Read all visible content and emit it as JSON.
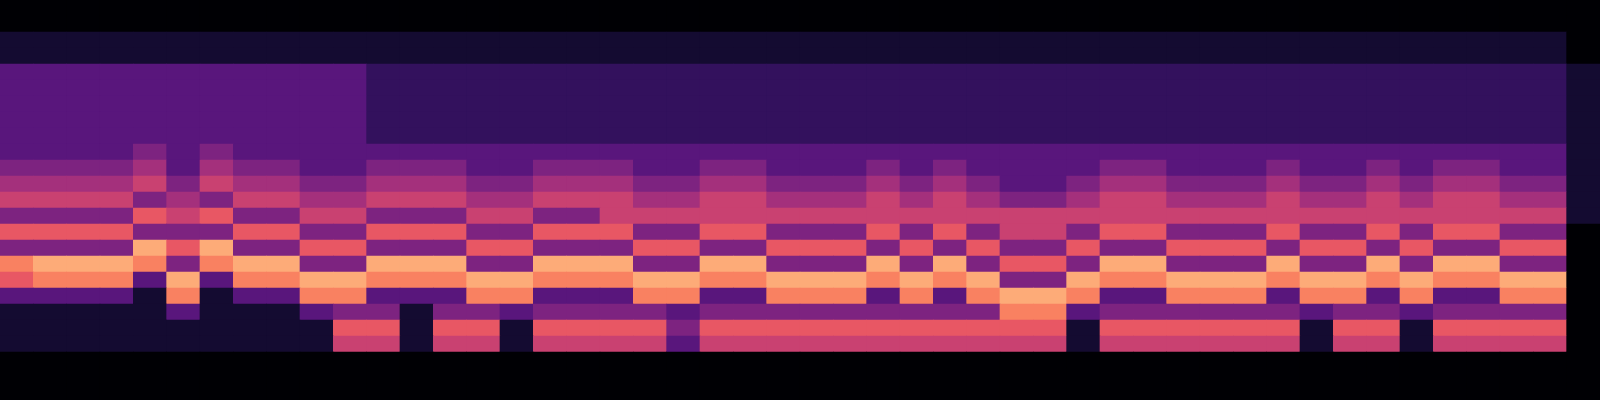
{
  "chart_data": {
    "type": "heatmap",
    "tick_labels": false,
    "cells": [
      [
        0,
        0,
        0,
        0,
        0,
        0,
        0,
        0,
        0,
        0,
        0,
        0,
        0,
        0,
        0,
        0,
        0,
        0,
        0,
        0,
        0,
        0,
        0,
        0,
        0,
        0,
        0,
        0,
        0,
        0,
        0,
        0,
        0,
        0,
        0,
        0,
        0,
        0,
        0,
        0,
        0,
        0,
        0,
        0,
        0,
        0,
        0,
        0
      ],
      [
        0,
        0,
        0,
        0,
        0,
        0,
        0,
        0,
        0,
        0,
        0,
        0,
        0,
        0,
        0,
        0,
        0,
        0,
        0,
        0,
        0,
        0,
        0,
        0,
        0,
        0,
        0,
        0,
        0,
        0,
        0,
        0,
        0,
        0,
        0,
        0,
        0,
        0,
        0,
        0,
        0,
        0,
        0,
        0,
        0,
        0,
        0,
        0
      ],
      [
        1,
        1,
        1,
        1,
        1,
        1,
        1,
        1,
        1,
        1,
        1,
        1,
        1,
        1,
        1,
        1,
        1,
        1,
        1,
        1,
        1,
        1,
        1,
        1,
        1,
        1,
        1,
        1,
        1,
        1,
        1,
        1,
        1,
        1,
        1,
        1,
        1,
        1,
        1,
        1,
        1,
        1,
        1,
        1,
        1,
        1,
        1,
        0
      ],
      [
        1,
        1,
        1,
        1,
        1,
        1,
        1,
        1,
        1,
        1,
        1,
        1,
        1,
        1,
        1,
        1,
        1,
        1,
        1,
        1,
        1,
        1,
        1,
        1,
        1,
        1,
        1,
        1,
        1,
        1,
        1,
        1,
        1,
        1,
        1,
        1,
        1,
        1,
        1,
        1,
        1,
        1,
        1,
        1,
        1,
        1,
        1,
        0
      ],
      [
        3,
        3,
        3,
        3,
        3,
        3,
        3,
        3,
        3,
        3,
        3,
        2,
        2,
        2,
        2,
        2,
        2,
        2,
        2,
        2,
        2,
        2,
        2,
        2,
        2,
        2,
        2,
        2,
        2,
        2,
        2,
        2,
        2,
        2,
        2,
        2,
        2,
        2,
        2,
        2,
        2,
        2,
        2,
        2,
        2,
        2,
        2,
        1
      ],
      [
        3,
        3,
        3,
        3,
        3,
        3,
        3,
        3,
        3,
        3,
        3,
        2,
        2,
        2,
        2,
        2,
        2,
        2,
        2,
        2,
        2,
        2,
        2,
        2,
        2,
        2,
        2,
        2,
        2,
        2,
        2,
        2,
        2,
        2,
        2,
        2,
        2,
        2,
        2,
        2,
        2,
        2,
        2,
        2,
        2,
        2,
        2,
        1
      ],
      [
        3,
        3,
        3,
        3,
        3,
        3,
        3,
        3,
        3,
        3,
        3,
        2,
        2,
        2,
        2,
        2,
        2,
        2,
        2,
        2,
        2,
        2,
        2,
        2,
        2,
        2,
        2,
        2,
        2,
        2,
        2,
        2,
        2,
        2,
        2,
        2,
        2,
        2,
        2,
        2,
        2,
        2,
        2,
        2,
        2,
        2,
        2,
        1
      ],
      [
        3,
        3,
        3,
        3,
        3,
        3,
        3,
        3,
        3,
        3,
        3,
        2,
        2,
        2,
        2,
        2,
        2,
        2,
        2,
        2,
        2,
        2,
        2,
        2,
        2,
        2,
        2,
        2,
        2,
        2,
        2,
        2,
        2,
        2,
        2,
        2,
        2,
        2,
        2,
        2,
        2,
        2,
        2,
        2,
        2,
        2,
        2,
        1
      ],
      [
        3,
        3,
        3,
        3,
        3,
        3,
        3,
        3,
        3,
        3,
        3,
        2,
        2,
        2,
        2,
        2,
        2,
        2,
        2,
        2,
        2,
        2,
        2,
        2,
        2,
        2,
        2,
        2,
        2,
        2,
        2,
        2,
        2,
        2,
        2,
        2,
        2,
        2,
        2,
        2,
        2,
        2,
        2,
        2,
        2,
        2,
        2,
        1
      ],
      [
        3,
        3,
        3,
        3,
        4,
        3,
        4,
        3,
        3,
        3,
        3,
        3,
        3,
        3,
        3,
        3,
        3,
        3,
        3,
        3,
        3,
        3,
        3,
        3,
        3,
        3,
        3,
        3,
        3,
        3,
        3,
        3,
        3,
        3,
        3,
        3,
        3,
        3,
        3,
        3,
        3,
        3,
        3,
        3,
        3,
        3,
        3,
        1
      ],
      [
        4,
        4,
        4,
        4,
        5,
        3,
        5,
        4,
        4,
        3,
        3,
        4,
        4,
        4,
        3,
        3,
        4,
        4,
        4,
        3,
        3,
        4,
        4,
        3,
        3,
        3,
        4,
        3,
        4,
        3,
        3,
        3,
        3,
        4,
        4,
        3,
        3,
        3,
        4,
        3,
        3,
        4,
        3,
        4,
        4,
        3,
        3,
        1
      ],
      [
        5,
        5,
        5,
        5,
        6,
        4,
        6,
        5,
        5,
        4,
        4,
        5,
        5,
        5,
        4,
        4,
        5,
        5,
        5,
        4,
        4,
        5,
        5,
        4,
        4,
        4,
        5,
        4,
        5,
        4,
        3,
        3,
        4,
        5,
        5,
        4,
        4,
        4,
        5,
        4,
        4,
        5,
        4,
        5,
        5,
        4,
        4,
        1
      ],
      [
        6,
        6,
        6,
        6,
        4,
        5,
        4,
        6,
        6,
        5,
        5,
        6,
        6,
        6,
        5,
        5,
        6,
        6,
        6,
        5,
        5,
        6,
        6,
        5,
        5,
        5,
        6,
        5,
        6,
        5,
        4,
        4,
        5,
        6,
        6,
        5,
        5,
        5,
        6,
        5,
        5,
        6,
        5,
        6,
        6,
        5,
        5,
        1
      ],
      [
        4,
        4,
        4,
        4,
        7,
        6,
        7,
        4,
        4,
        6,
        6,
        4,
        4,
        4,
        6,
        6,
        4,
        4,
        6,
        6,
        6,
        6,
        6,
        6,
        6,
        6,
        6,
        6,
        6,
        6,
        6,
        6,
        6,
        6,
        6,
        6,
        6,
        6,
        6,
        6,
        6,
        6,
        6,
        6,
        6,
        6,
        6,
        1
      ],
      [
        7,
        7,
        7,
        7,
        4,
        4,
        4,
        7,
        7,
        4,
        4,
        7,
        7,
        7,
        4,
        4,
        7,
        7,
        7,
        4,
        4,
        7,
        7,
        4,
        4,
        4,
        7,
        4,
        7,
        4,
        6,
        6,
        4,
        7,
        7,
        4,
        4,
        4,
        7,
        4,
        4,
        7,
        4,
        7,
        7,
        4,
        4,
        0
      ],
      [
        4,
        4,
        4,
        4,
        9,
        7,
        9,
        4,
        4,
        7,
        7,
        4,
        4,
        4,
        7,
        7,
        4,
        4,
        4,
        7,
        7,
        4,
        4,
        7,
        7,
        7,
        4,
        7,
        4,
        7,
        4,
        4,
        7,
        4,
        4,
        7,
        7,
        7,
        4,
        7,
        7,
        4,
        7,
        4,
        4,
        7,
        7,
        0
      ],
      [
        8,
        9,
        9,
        9,
        8,
        4,
        8,
        9,
        9,
        4,
        4,
        9,
        9,
        9,
        4,
        4,
        9,
        9,
        9,
        4,
        4,
        9,
        9,
        4,
        4,
        4,
        9,
        4,
        9,
        4,
        7,
        7,
        4,
        9,
        9,
        4,
        4,
        4,
        9,
        4,
        4,
        9,
        4,
        9,
        9,
        4,
        4,
        0
      ],
      [
        7,
        8,
        8,
        8,
        3,
        9,
        3,
        8,
        8,
        9,
        9,
        8,
        8,
        8,
        9,
        9,
        8,
        8,
        8,
        9,
        9,
        8,
        8,
        9,
        9,
        9,
        8,
        9,
        8,
        9,
        4,
        4,
        9,
        8,
        8,
        9,
        9,
        9,
        8,
        9,
        9,
        8,
        9,
        8,
        8,
        9,
        9,
        0
      ],
      [
        3,
        3,
        3,
        3,
        1,
        8,
        1,
        3,
        3,
        8,
        8,
        3,
        3,
        3,
        8,
        8,
        3,
        3,
        3,
        8,
        8,
        3,
        3,
        8,
        8,
        8,
        3,
        8,
        3,
        8,
        9,
        9,
        8,
        3,
        3,
        8,
        8,
        8,
        3,
        8,
        8,
        3,
        8,
        3,
        3,
        8,
        8,
        0
      ],
      [
        1,
        1,
        1,
        1,
        1,
        3,
        1,
        1,
        1,
        3,
        4,
        4,
        1,
        4,
        4,
        3,
        4,
        4,
        4,
        4,
        3,
        4,
        4,
        4,
        4,
        4,
        4,
        4,
        4,
        4,
        8,
        8,
        3,
        4,
        4,
        4,
        4,
        4,
        4,
        3,
        4,
        4,
        3,
        4,
        4,
        4,
        4,
        0
      ],
      [
        1,
        1,
        1,
        1,
        1,
        1,
        1,
        1,
        1,
        1,
        7,
        7,
        1,
        7,
        7,
        1,
        7,
        7,
        7,
        7,
        4,
        7,
        7,
        7,
        7,
        7,
        7,
        7,
        7,
        7,
        7,
        7,
        1,
        7,
        7,
        7,
        7,
        7,
        7,
        1,
        7,
        7,
        1,
        7,
        7,
        7,
        7,
        0
      ],
      [
        1,
        1,
        1,
        1,
        1,
        1,
        1,
        1,
        1,
        1,
        6,
        6,
        1,
        6,
        6,
        1,
        6,
        6,
        6,
        6,
        3,
        6,
        6,
        6,
        6,
        6,
        6,
        6,
        6,
        6,
        6,
        6,
        1,
        6,
        6,
        6,
        6,
        6,
        6,
        1,
        6,
        6,
        1,
        6,
        6,
        6,
        6,
        0
      ],
      [
        0,
        0,
        0,
        0,
        0,
        0,
        0,
        0,
        0,
        0,
        0,
        0,
        0,
        0,
        0,
        0,
        0,
        0,
        0,
        0,
        0,
        0,
        0,
        0,
        0,
        0,
        0,
        0,
        0,
        0,
        0,
        0,
        0,
        0,
        0,
        0,
        0,
        0,
        0,
        0,
        0,
        0,
        0,
        0,
        0,
        0,
        0,
        0
      ],
      [
        0,
        0,
        0,
        0,
        0,
        0,
        0,
        0,
        0,
        0,
        0,
        0,
        0,
        0,
        0,
        0,
        0,
        0,
        0,
        0,
        0,
        0,
        0,
        0,
        0,
        0,
        0,
        0,
        0,
        0,
        0,
        0,
        0,
        0,
        0,
        0,
        0,
        0,
        0,
        0,
        0,
        0,
        0,
        0,
        0,
        0,
        0,
        0
      ],
      [
        0,
        0,
        0,
        0,
        0,
        0,
        0,
        0,
        0,
        0,
        0,
        0,
        0,
        0,
        0,
        0,
        0,
        0,
        0,
        0,
        0,
        0,
        0,
        0,
        0,
        0,
        0,
        0,
        0,
        0,
        0,
        0,
        0,
        0,
        0,
        0,
        0,
        0,
        0,
        0,
        0,
        0,
        0,
        0,
        0,
        0,
        0,
        0
      ]
    ]
  }
}
